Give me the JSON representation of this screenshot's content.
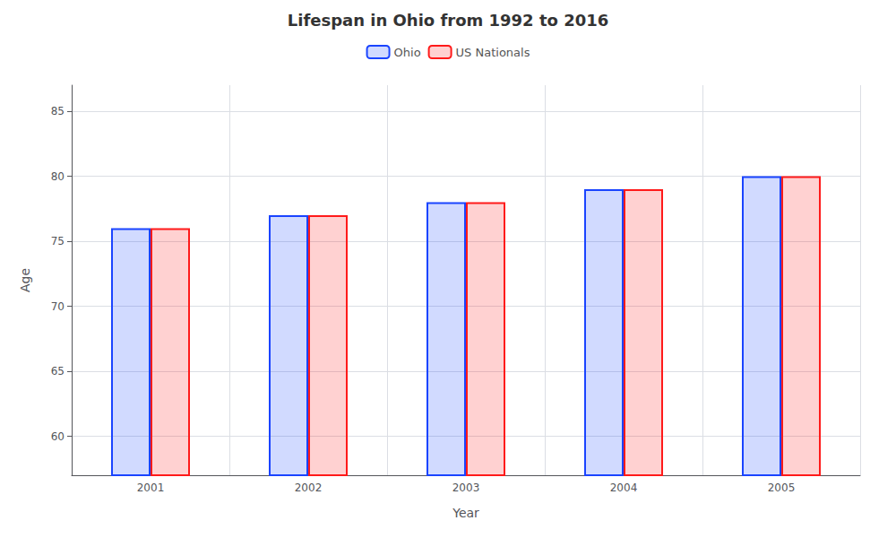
{
  "chart_data": {
    "type": "bar",
    "title": "Lifespan in Ohio from 1992 to 2016",
    "xlabel": "Year",
    "ylabel": "Age",
    "categories": [
      "2001",
      "2002",
      "2003",
      "2004",
      "2005"
    ],
    "series": [
      {
        "name": "Ohio",
        "color": "#1a44ff",
        "values": [
          76,
          77,
          78,
          79,
          80
        ]
      },
      {
        "name": "US Nationals",
        "color": "#ff1a1a",
        "values": [
          76,
          77,
          78,
          79,
          80
        ]
      }
    ],
    "ylim": [
      57,
      87
    ],
    "yticks": [
      60,
      65,
      70,
      75,
      80,
      85
    ],
    "grid": true,
    "legend": "top"
  }
}
